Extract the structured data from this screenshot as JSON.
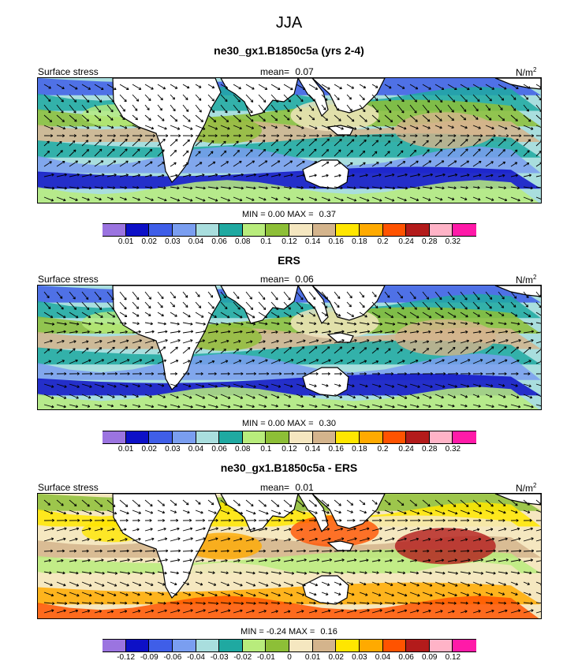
{
  "figure": {
    "title": "JJA"
  },
  "panels": [
    {
      "title": "ne30_gx1.B1850c5a (yrs 2-4)",
      "left": "Surface stress",
      "mean_label": "mean=",
      "mean": "0.07",
      "units_base": "N/m",
      "units_exp": "2",
      "min_label": "MIN =",
      "min": "0.00",
      "max_label": "MAX =",
      "max": "0.37"
    },
    {
      "title": "ERS",
      "left": "Surface stress",
      "mean_label": "mean=",
      "mean": "0.06",
      "units_base": "N/m",
      "units_exp": "2",
      "min_label": "MIN =",
      "min": "0.00",
      "max_label": "MAX =",
      "max": "0.30"
    },
    {
      "title": "ne30_gx1.B1850c5a - ERS",
      "left": "Surface stress",
      "mean_label": "mean=",
      "mean": "0.01",
      "units_base": "N/m",
      "units_exp": "2",
      "min_label": "MIN =",
      "min": "-0.24",
      "max_label": "MAX =",
      "max": "0.16"
    }
  ],
  "chart_data": [
    {
      "type": "heatmap",
      "title": "ne30_gx1.B1850c5a (yrs 2-4)",
      "variable": "Surface stress",
      "units": "N/m2",
      "mean": 0.07,
      "min": 0.0,
      "max": 0.37,
      "colorbar_labels": [
        "0.01",
        "0.02",
        "0.03",
        "0.04",
        "0.06",
        "0.08",
        "0.1",
        "0.12",
        "0.14",
        "0.16",
        "0.18",
        "0.2",
        "0.24",
        "0.28",
        "0.32"
      ],
      "colors": [
        "#9b74e0",
        "#0d10c7",
        "#3f5ee8",
        "#7a9ef0",
        "#a9dede",
        "#1fa9a1",
        "#b8ec7c",
        "#8dbf37",
        "#f5e7c0",
        "#d4b48c",
        "#ffe600",
        "#ffaa00",
        "#ff5300",
        "#b31b1b",
        "#ffb3c7",
        "#ff1aa8"
      ]
    },
    {
      "type": "heatmap",
      "title": "ERS",
      "variable": "Surface stress",
      "units": "N/m2",
      "mean": 0.06,
      "min": 0.0,
      "max": 0.3,
      "colorbar_labels": [
        "0.01",
        "0.02",
        "0.03",
        "0.04",
        "0.06",
        "0.08",
        "0.1",
        "0.12",
        "0.14",
        "0.16",
        "0.18",
        "0.2",
        "0.24",
        "0.28",
        "0.32"
      ],
      "colors": [
        "#9b74e0",
        "#0d10c7",
        "#3f5ee8",
        "#7a9ef0",
        "#a9dede",
        "#1fa9a1",
        "#b8ec7c",
        "#8dbf37",
        "#f5e7c0",
        "#d4b48c",
        "#ffe600",
        "#ffaa00",
        "#ff5300",
        "#b31b1b",
        "#ffb3c7",
        "#ff1aa8"
      ]
    },
    {
      "type": "heatmap",
      "title": "ne30_gx1.B1850c5a - ERS",
      "variable": "Surface stress",
      "units": "N/m2",
      "mean": 0.01,
      "min": -0.24,
      "max": 0.16,
      "colorbar_labels": [
        "-0.12",
        "-0.09",
        "-0.06",
        "-0.04",
        "-0.03",
        "-0.02",
        "-0.01",
        "0",
        "0.01",
        "0.02",
        "0.03",
        "0.04",
        "0.06",
        "0.09",
        "0.12"
      ],
      "colors": [
        "#9b74e0",
        "#0d10c7",
        "#3f5ee8",
        "#7a9ef0",
        "#a9dede",
        "#1fa9a1",
        "#b8ec7c",
        "#8dbf37",
        "#f5e7c0",
        "#d4b48c",
        "#ffe600",
        "#ffaa00",
        "#ff5300",
        "#b31b1b",
        "#ffb3c7",
        "#ff1aa8"
      ]
    }
  ]
}
